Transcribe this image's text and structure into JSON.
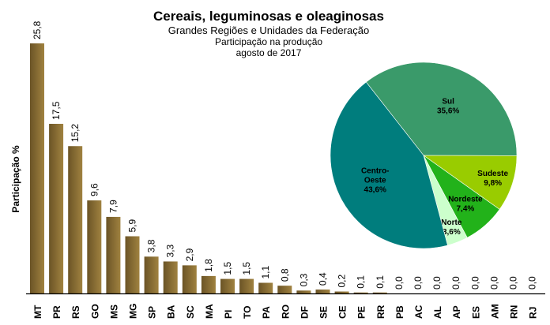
{
  "chart_data": [
    {
      "type": "bar",
      "title": "Cereais, leguminosas e oleaginosas",
      "subtitle": [
        "Grandes Regiões e Unidades da Federação",
        "Participação na produção",
        "agosto de 2017"
      ],
      "xlabel": "",
      "ylabel": "Participação %",
      "categories": [
        "MT",
        "PR",
        "RS",
        "GO",
        "MS",
        "MG",
        "SP",
        "BA",
        "SC",
        "MA",
        "PI",
        "TO",
        "PA",
        "RO",
        "DF",
        "SE",
        "CE",
        "PE",
        "RR",
        "PB",
        "AC",
        "AL",
        "AP",
        "ES",
        "AM",
        "RN",
        "RJ"
      ],
      "values": [
        25.8,
        17.5,
        15.2,
        9.6,
        7.9,
        5.9,
        3.8,
        3.3,
        2.9,
        1.8,
        1.5,
        1.5,
        1.1,
        0.8,
        0.3,
        0.4,
        0.2,
        0.1,
        0.1,
        0.0,
        0.0,
        0.0,
        0.0,
        0.0,
        0.0,
        0.0,
        0.0
      ],
      "data_labels": [
        "25,8",
        "17,5",
        "15,2",
        "9,6",
        "7,9",
        "5,9",
        "3,8",
        "3,3",
        "2,9",
        "1,8",
        "1,5",
        "1,5",
        "1,1",
        "0,8",
        "0,3",
        "0,4",
        "0,2",
        "0,1",
        "0,1",
        "0,0",
        "0,0",
        "0,0",
        "0,0",
        "0,0",
        "0,0",
        "0,0",
        "0,0"
      ],
      "ylim": [
        0,
        26
      ],
      "grid": false,
      "bar_color_dark": "#6b5426",
      "bar_color_light": "#a08240"
    },
    {
      "type": "pie",
      "slices": [
        {
          "name": "Sul",
          "label": [
            "Sul"
          ],
          "value": 35.6,
          "text": "35,6%",
          "color": "#3a9a6a"
        },
        {
          "name": "Sudeste",
          "label": [
            "Sudeste"
          ],
          "value": 9.8,
          "text": "9,8%",
          "color": "#99cc00"
        },
        {
          "name": "Nordeste",
          "label": [
            "Nordeste"
          ],
          "value": 7.4,
          "text": "7,4%",
          "color": "#22b21a"
        },
        {
          "name": "Norte",
          "label": [
            "Norte"
          ],
          "value": 3.6,
          "text": "3,6%",
          "color": "#ccffcc"
        },
        {
          "name": "Centro-Oeste",
          "label": [
            "Centro-",
            "Oeste"
          ],
          "value": 43.6,
          "text": "43,6%",
          "color": "#007d7d"
        }
      ]
    }
  ]
}
